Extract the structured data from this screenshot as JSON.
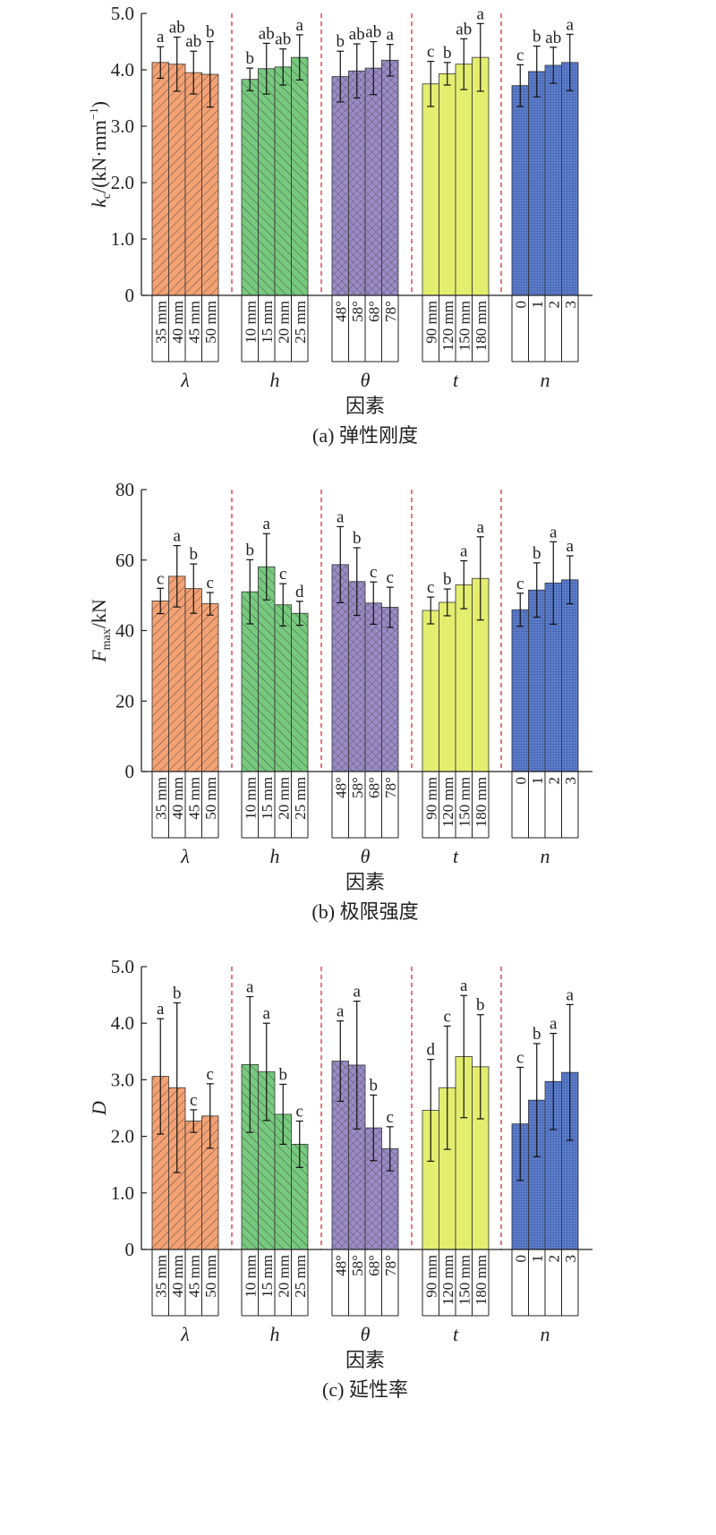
{
  "chart_data": [
    {
      "type": "bar",
      "ylabel_main": "k",
      "ylabel_sub": "c",
      "ylabel_tail": "/(kN·mm",
      "ylabel_sup": "−1",
      "ylabel_close": ")",
      "caption": "(a) 弹性刚度",
      "xlabel": "因素",
      "ylim": [
        0,
        5
      ],
      "yticks": [
        "0",
        "1.0",
        "2.0",
        "3.0",
        "4.0",
        "5.0"
      ],
      "ytick_values": [
        0,
        1,
        2,
        3,
        4,
        5
      ],
      "groups": [
        {
          "factor": "λ",
          "levels": [
            "35 mm",
            "40 mm",
            "45 mm",
            "50 mm"
          ],
          "values": [
            4.13,
            4.1,
            3.95,
            3.92
          ],
          "errors": [
            0.28,
            0.48,
            0.38,
            0.58
          ],
          "letters": [
            "a",
            "ab",
            "ab",
            "b"
          ]
        },
        {
          "factor": "h",
          "levels": [
            "10 mm",
            "15 mm",
            "20 mm",
            "25 mm"
          ],
          "values": [
            3.83,
            4.02,
            4.05,
            4.22
          ],
          "errors": [
            0.2,
            0.45,
            0.32,
            0.4
          ],
          "letters": [
            "b",
            "ab",
            "ab",
            "a"
          ]
        },
        {
          "factor": "θ",
          "levels": [
            "48°",
            "58°",
            "68°",
            "78°"
          ],
          "values": [
            3.88,
            3.98,
            4.03,
            4.17
          ],
          "errors": [
            0.45,
            0.48,
            0.47,
            0.28
          ],
          "letters": [
            "b",
            "ab",
            "ab",
            "a"
          ]
        },
        {
          "factor": "t",
          "levels": [
            "90 mm",
            "120 mm",
            "150 mm",
            "180 mm"
          ],
          "values": [
            3.75,
            3.93,
            4.1,
            4.22
          ],
          "errors": [
            0.4,
            0.2,
            0.45,
            0.6
          ],
          "letters": [
            "c",
            "b",
            "ab",
            "a"
          ]
        },
        {
          "factor": "n",
          "levels": [
            "0",
            "1",
            "2",
            "3"
          ],
          "values": [
            3.72,
            3.97,
            4.08,
            4.13
          ],
          "errors": [
            0.37,
            0.45,
            0.32,
            0.5
          ],
          "letters": [
            "c",
            "b",
            "ab",
            "a"
          ]
        }
      ]
    },
    {
      "type": "bar",
      "ylabel_main": "F",
      "ylabel_sub": "max",
      "ylabel_tail": "/kN",
      "ylabel_sup": "",
      "ylabel_close": "",
      "caption": "(b) 极限强度",
      "xlabel": "因素",
      "ylim": [
        0,
        80
      ],
      "yticks": [
        "0",
        "20",
        "40",
        "60",
        "80"
      ],
      "ytick_values": [
        0,
        20,
        40,
        60,
        80
      ],
      "groups": [
        {
          "factor": "λ",
          "levels": [
            "35 mm",
            "40 mm",
            "45 mm",
            "50 mm"
          ],
          "values": [
            48.4,
            55.4,
            51.9,
            47.6
          ],
          "errors": [
            3.6,
            8.7,
            7.0,
            3.2
          ],
          "letters": [
            "c",
            "a",
            "b",
            "c"
          ]
        },
        {
          "factor": "h",
          "levels": [
            "10 mm",
            "15 mm",
            "20 mm",
            "25 mm"
          ],
          "values": [
            51.0,
            58.1,
            47.3,
            44.9
          ],
          "errors": [
            9.1,
            9.4,
            6.0,
            3.4
          ],
          "letters": [
            "b",
            "a",
            "c",
            "d"
          ]
        },
        {
          "factor": "θ",
          "levels": [
            "48°",
            "58°",
            "68°",
            "78°"
          ],
          "values": [
            58.7,
            53.9,
            47.8,
            46.6
          ],
          "errors": [
            10.8,
            9.6,
            6.0,
            5.7
          ],
          "letters": [
            "a",
            "b",
            "c",
            "c"
          ]
        },
        {
          "factor": "t",
          "levels": [
            "90 mm",
            "120 mm",
            "150 mm",
            "180 mm"
          ],
          "values": [
            45.7,
            48.0,
            53.0,
            54.8
          ],
          "errors": [
            3.8,
            3.8,
            6.8,
            11.8
          ],
          "letters": [
            "c",
            "b",
            "a",
            "a"
          ]
        },
        {
          "factor": "n",
          "levels": [
            "0",
            "1",
            "2",
            "3"
          ],
          "values": [
            45.9,
            51.5,
            53.5,
            54.4
          ],
          "errors": [
            4.7,
            7.7,
            11.7,
            6.8
          ],
          "letters": [
            "c",
            "b",
            "a",
            "a"
          ]
        }
      ]
    },
    {
      "type": "bar",
      "ylabel_main": "D",
      "ylabel_sub": "",
      "ylabel_tail": "",
      "ylabel_sup": "",
      "ylabel_close": "",
      "caption": "(c) 延性率",
      "xlabel": "因素",
      "ylim": [
        0,
        5
      ],
      "yticks": [
        "0",
        "1.0",
        "2.0",
        "3.0",
        "4.0",
        "5.0"
      ],
      "ytick_values": [
        0,
        1,
        2,
        3,
        4,
        5
      ],
      "groups": [
        {
          "factor": "λ",
          "levels": [
            "35 mm",
            "40 mm",
            "45 mm",
            "50 mm"
          ],
          "values": [
            3.06,
            2.86,
            2.27,
            2.36
          ],
          "errors": [
            1.02,
            1.5,
            0.2,
            0.57
          ],
          "letters": [
            "a",
            "b",
            "c",
            "c"
          ]
        },
        {
          "factor": "h",
          "levels": [
            "10 mm",
            "15 mm",
            "20 mm",
            "25 mm"
          ],
          "values": [
            3.27,
            3.14,
            2.39,
            1.86
          ],
          "errors": [
            1.2,
            0.86,
            0.53,
            0.41
          ],
          "letters": [
            "a",
            "a",
            "b",
            "c"
          ]
        },
        {
          "factor": "θ",
          "levels": [
            "48°",
            "58°",
            "68°",
            "78°"
          ],
          "values": [
            3.33,
            3.26,
            2.15,
            1.78
          ],
          "errors": [
            0.71,
            1.13,
            0.58,
            0.39
          ],
          "letters": [
            "a",
            "a",
            "b",
            "c"
          ]
        },
        {
          "factor": "t",
          "levels": [
            "90 mm",
            "120 mm",
            "150 mm",
            "180 mm"
          ],
          "values": [
            2.46,
            2.86,
            3.41,
            3.23
          ],
          "errors": [
            0.9,
            1.09,
            1.08,
            0.92
          ],
          "letters": [
            "d",
            "c",
            "a",
            "b"
          ]
        },
        {
          "factor": "n",
          "levels": [
            "0",
            "1",
            "2",
            "3"
          ],
          "values": [
            2.22,
            2.64,
            2.97,
            3.13
          ],
          "errors": [
            1.0,
            1.0,
            0.85,
            1.2
          ],
          "letters": [
            "c",
            "b",
            "a",
            "a"
          ]
        }
      ]
    }
  ],
  "colors": {
    "group_fills": [
      "#F4A173",
      "#77C97E",
      "#9A8BC6",
      "#E3EE6F",
      "#5D7FCE"
    ],
    "group_patterns": [
      "diag-forward",
      "diag-back",
      "crosshatch",
      "none",
      "grid"
    ],
    "separator": "#E03A45",
    "axis": "#222222"
  }
}
